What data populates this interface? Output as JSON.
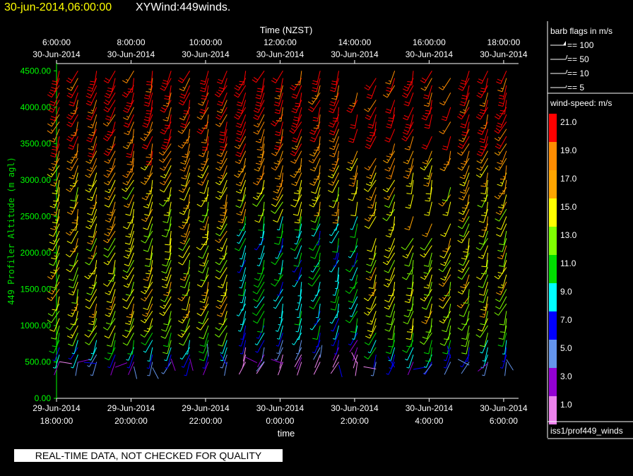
{
  "header": {
    "date": "30-jun-2014,06:00:00",
    "title": "XYWind:449winds."
  },
  "footer": {
    "notice": "REAL-TIME DATA, NOT CHECKED FOR QUALITY",
    "source": "iss1/prof449_winds"
  },
  "legend": {
    "barb_title": "barb flags in m/s",
    "barbs": [
      "== 100",
      "== 50",
      "== 10",
      "== 5"
    ],
    "speed_title": "wind-speed: m/s",
    "speed_levels": [
      {
        "label": "21.0",
        "color": "#ff0000"
      },
      {
        "label": "19.0",
        "color": "#ff8c00"
      },
      {
        "label": "17.0",
        "color": "#ffa500"
      },
      {
        "label": "15.0",
        "color": "#ffff00"
      },
      {
        "label": "13.0",
        "color": "#7fff00"
      },
      {
        "label": "11.0",
        "color": "#00dd00"
      },
      {
        "label": "9.0",
        "color": "#00ffff"
      },
      {
        "label": "7.0",
        "color": "#0000ff"
      },
      {
        "label": "5.0",
        "color": "#6495ed"
      },
      {
        "label": "3.0",
        "color": "#9400d3"
      },
      {
        "label": "1.0",
        "color": "#ee82ee"
      }
    ]
  },
  "chart_data": {
    "type": "scatter",
    "title": "XYWind:449winds.",
    "top_axis_title": "Time (NZST)",
    "xlabel": "time",
    "ylabel": "449 Profiler Altitude (m agl)",
    "ylim": [
      0,
      4600
    ],
    "yticks": [
      "0.00",
      "500.00",
      "1000.00",
      "1500.00",
      "2000.00",
      "2500.00",
      "3000.00",
      "3500.00",
      "4000.00",
      "4500.00"
    ],
    "bottom_ticks": [
      [
        "29-Jun-2014",
        "18:00:00"
      ],
      [
        "29-Jun-2014",
        "20:00:00"
      ],
      [
        "29-Jun-2014",
        "22:00:00"
      ],
      [
        "30-Jun-2014",
        "0:00:00"
      ],
      [
        "30-Jun-2014",
        "2:00:00"
      ],
      [
        "30-Jun-2014",
        "4:00:00"
      ],
      [
        "30-Jun-2014",
        "6:00:00"
      ]
    ],
    "top_ticks": [
      [
        "6:00:00",
        "30-Jun-2014"
      ],
      [
        "8:00:00",
        "30-Jun-2014"
      ],
      [
        "10:00:00",
        "30-Jun-2014"
      ],
      [
        "12:00:00",
        "30-Jun-2014"
      ],
      [
        "14:00:00",
        "30-Jun-2014"
      ],
      [
        "16:00:00",
        "30-Jun-2014"
      ],
      [
        "18:00:00",
        "30-Jun-2014"
      ]
    ],
    "profile_times_utc_hours_after_2014-06-29T18": [
      0,
      0.5,
      1,
      1.5,
      2,
      2.5,
      3,
      3.5,
      4,
      4.5,
      5,
      5.5,
      6,
      6.5,
      7,
      7.5,
      8,
      8.5,
      9,
      9.5,
      10,
      10.5,
      11,
      11.5,
      12
    ],
    "altitude_levels_m": [
      500,
      600,
      700,
      800,
      900,
      1000,
      1100,
      1200,
      1300,
      1400,
      1500,
      1600,
      1700,
      1800,
      1900,
      2000,
      2100,
      2200,
      2300,
      2400,
      2500,
      2600,
      2700,
      2800,
      2900,
      3000,
      3100,
      3200,
      3300,
      3400,
      3500,
      3600,
      3700,
      3800,
      3900,
      4000,
      4100,
      4200,
      4300,
      4400,
      4500
    ],
    "speed_profile_ms": {
      "altitude_m": [
        500,
        1000,
        1500,
        2000,
        2500,
        3000,
        3500,
        4000,
        4500
      ],
      "speed": [
        5,
        14,
        15,
        14,
        15,
        16,
        19,
        21,
        21
      ]
    },
    "grid": false,
    "legend_position": "right"
  }
}
